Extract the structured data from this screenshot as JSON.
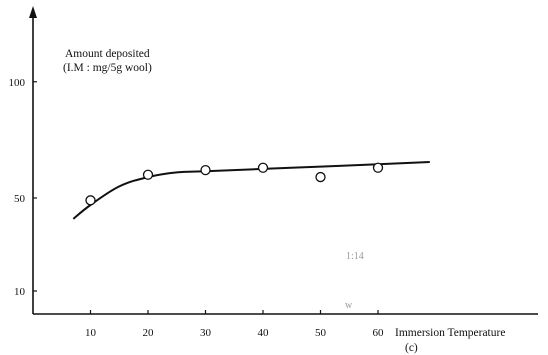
{
  "chart_data": {
    "type": "scatter",
    "title": "",
    "ylabel_line1": "Amount deposited",
    "ylabel_line2": "(I.M : mg/5g wool)",
    "xlabel": "Immersion Temperature",
    "caption": "(c)",
    "x_ticks": [
      10,
      20,
      30,
      40,
      50,
      60
    ],
    "y_ticks": [
      10,
      50,
      100
    ],
    "xlim": [
      0,
      90
    ],
    "ylim": [
      0,
      125
    ],
    "points": [
      {
        "x": 10,
        "y": 49
      },
      {
        "x": 20,
        "y": 60
      },
      {
        "x": 30,
        "y": 62
      },
      {
        "x": 40,
        "y": 63
      },
      {
        "x": 50,
        "y": 59
      },
      {
        "x": 60,
        "y": 63
      }
    ],
    "fitted_curve": [
      {
        "x": 7,
        "y": 41
      },
      {
        "x": 10,
        "y": 47
      },
      {
        "x": 15,
        "y": 55
      },
      {
        "x": 20,
        "y": 59
      },
      {
        "x": 25,
        "y": 61
      },
      {
        "x": 30,
        "y": 61.5
      },
      {
        "x": 40,
        "y": 62.5
      },
      {
        "x": 50,
        "y": 63.5
      },
      {
        "x": 60,
        "y": 64.5
      },
      {
        "x": 69,
        "y": 65.5
      }
    ],
    "grid": false,
    "legend": "none"
  },
  "artifacts": {
    "faint_mark_1": "1:14",
    "faint_mark_2": "w"
  }
}
